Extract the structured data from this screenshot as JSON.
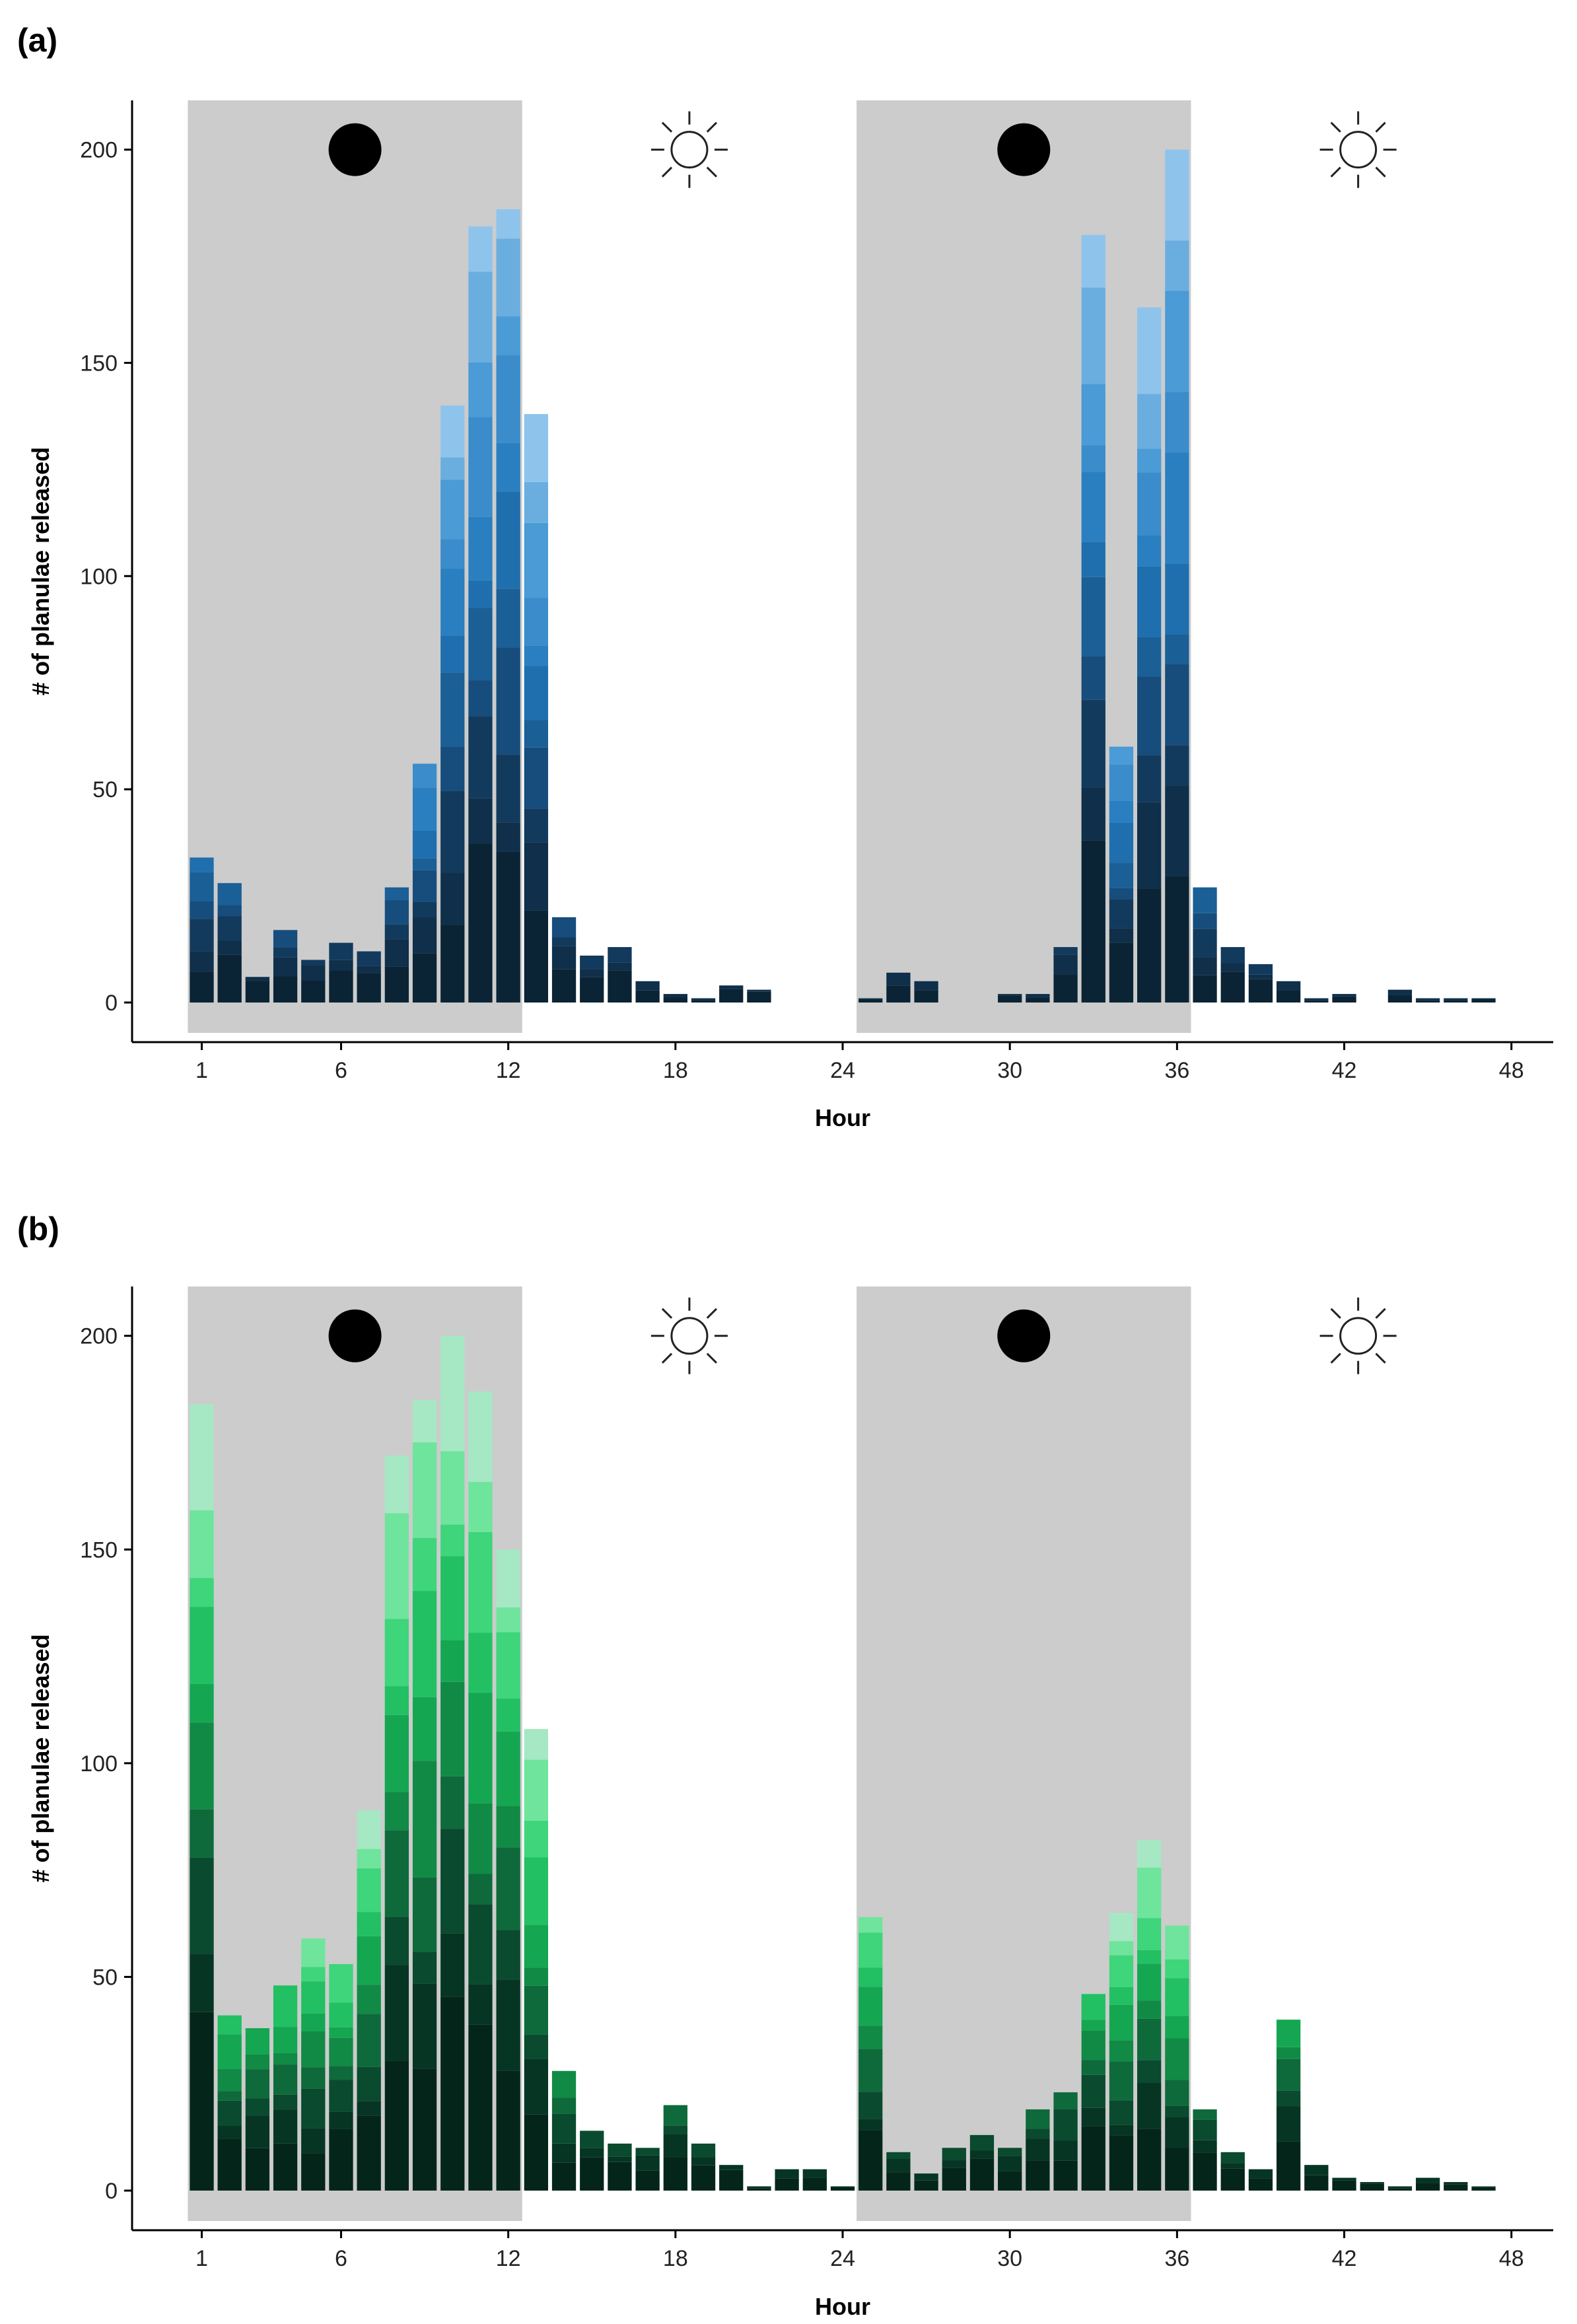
{
  "figure": {
    "background": "#ffffff",
    "night_shade_color": "#cccccc"
  },
  "chart_data": [
    {
      "panel_label": "(a)",
      "type": "bar",
      "stacked": true,
      "palette": [
        "#0a2435",
        "#0f2f4a",
        "#123a5c",
        "#164d7c",
        "#1a5f96",
        "#1f6fae",
        "#2a7fc0",
        "#3a8ccb",
        "#4a9bd6",
        "#6aaee0",
        "#8ec4ec"
      ],
      "xlabel": "Hour",
      "ylabel": "# of planulae released",
      "xlim": [
        -1.5,
        49.5
      ],
      "ylim": [
        0,
        210
      ],
      "x_ticks": [
        1,
        6,
        12,
        18,
        24,
        30,
        36,
        42,
        48
      ],
      "y_ticks": [
        0,
        50,
        100,
        150,
        200
      ],
      "night_periods": [
        [
          0.5,
          12.5
        ],
        [
          24.5,
          36.5
        ]
      ],
      "night_icon": "filled-circle-moon",
      "day_icon": "sun",
      "icon_positions": [
        [
          6.5,
          "night"
        ],
        [
          18.5,
          "day"
        ],
        [
          30.5,
          "night"
        ],
        [
          42.5,
          "day"
        ]
      ],
      "hours": [
        1,
        2,
        3,
        4,
        5,
        6,
        7,
        8,
        9,
        10,
        11,
        12,
        13,
        14,
        15,
        16,
        17,
        18,
        19,
        20,
        21,
        22,
        23,
        24,
        25,
        26,
        27,
        28,
        29,
        30,
        31,
        32,
        33,
        34,
        35,
        36,
        37,
        38,
        39,
        40,
        41,
        42,
        43,
        44,
        45,
        46,
        47,
        48
      ],
      "totals": [
        34,
        28,
        6,
        17,
        10,
        14,
        12,
        27,
        56,
        140,
        182,
        186,
        138,
        20,
        11,
        13,
        5,
        2,
        1,
        4,
        3,
        0,
        0,
        0,
        1,
        7,
        5,
        0,
        0,
        2,
        2,
        13,
        180,
        60,
        163,
        200,
        27,
        13,
        9,
        5,
        1,
        2,
        0,
        3,
        1,
        1,
        1,
        0
      ]
    },
    {
      "panel_label": "(b)",
      "type": "bar",
      "stacked": true,
      "palette": [
        "#04261a",
        "#063524",
        "#0a4a2f",
        "#0e6a3a",
        "#118a45",
        "#15a652",
        "#22c063",
        "#3ed57b",
        "#6fe49c",
        "#a5e8c3"
      ],
      "xlabel": "Hour",
      "ylabel": "# of planulae released",
      "xlim": [
        -1.5,
        49.5
      ],
      "ylim": [
        0,
        210
      ],
      "x_ticks": [
        1,
        6,
        12,
        18,
        24,
        30,
        36,
        42,
        48
      ],
      "y_ticks": [
        0,
        50,
        100,
        150,
        200
      ],
      "night_periods": [
        [
          0.5,
          12.5
        ],
        [
          24.5,
          36.5
        ]
      ],
      "night_icon": "filled-circle-moon",
      "day_icon": "sun",
      "icon_positions": [
        [
          6.5,
          "night"
        ],
        [
          18.5,
          "day"
        ],
        [
          30.5,
          "night"
        ],
        [
          42.5,
          "day"
        ]
      ],
      "hours": [
        1,
        2,
        3,
        4,
        5,
        6,
        7,
        8,
        9,
        10,
        11,
        12,
        13,
        14,
        15,
        16,
        17,
        18,
        19,
        20,
        21,
        22,
        23,
        24,
        25,
        26,
        27,
        28,
        29,
        30,
        31,
        32,
        33,
        34,
        35,
        36,
        37,
        38,
        39,
        40,
        41,
        42,
        43,
        44,
        45,
        46,
        47,
        48
      ],
      "totals": [
        184,
        41,
        38,
        48,
        59,
        53,
        89,
        172,
        185,
        200,
        187,
        150,
        108,
        28,
        14,
        11,
        10,
        20,
        11,
        6,
        1,
        5,
        5,
        1,
        64,
        9,
        4,
        10,
        13,
        10,
        19,
        23,
        46,
        65,
        82,
        62,
        19,
        9,
        5,
        40,
        6,
        3,
        2,
        1,
        3,
        2,
        1,
        0
      ]
    }
  ]
}
